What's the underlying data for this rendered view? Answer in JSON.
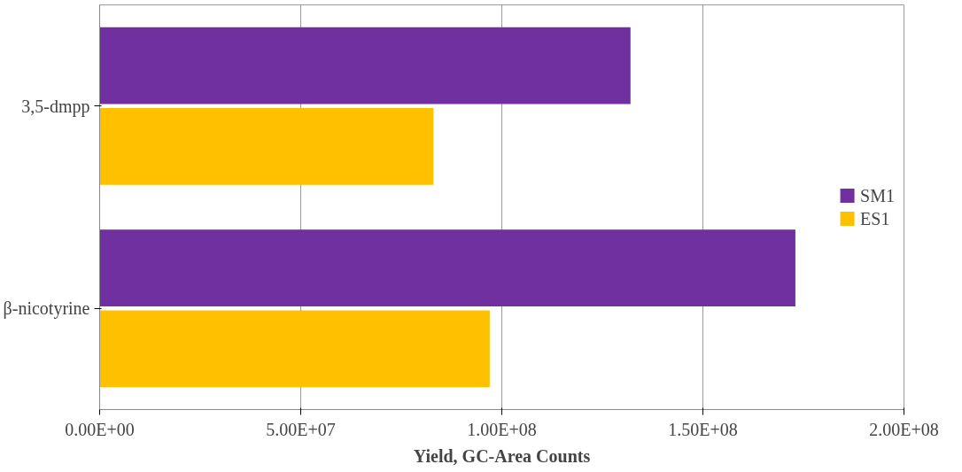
{
  "chart_data": {
    "type": "bar",
    "orientation": "horizontal",
    "xlabel": "Yield, GC-Area Counts",
    "categories": [
      "3,5-dmpp",
      "β-nicotyrine"
    ],
    "series": [
      {
        "name": "SM1",
        "color": "#7030a0",
        "values": [
          132000000,
          173000000
        ]
      },
      {
        "name": "ES1",
        "color": "#ffc000",
        "values": [
          83000000,
          97000000
        ]
      }
    ],
    "xlim": [
      0,
      200000000
    ],
    "xticks": [
      {
        "value": 0,
        "label": "0.00E+00"
      },
      {
        "value": 50000000,
        "label": "5.00E+07"
      },
      {
        "value": 100000000,
        "label": "1.00E+08"
      },
      {
        "value": 150000000,
        "label": "1.50E+08"
      },
      {
        "value": 200000000,
        "label": "2.00E+08"
      }
    ],
    "grid": "x",
    "legend": "right"
  }
}
